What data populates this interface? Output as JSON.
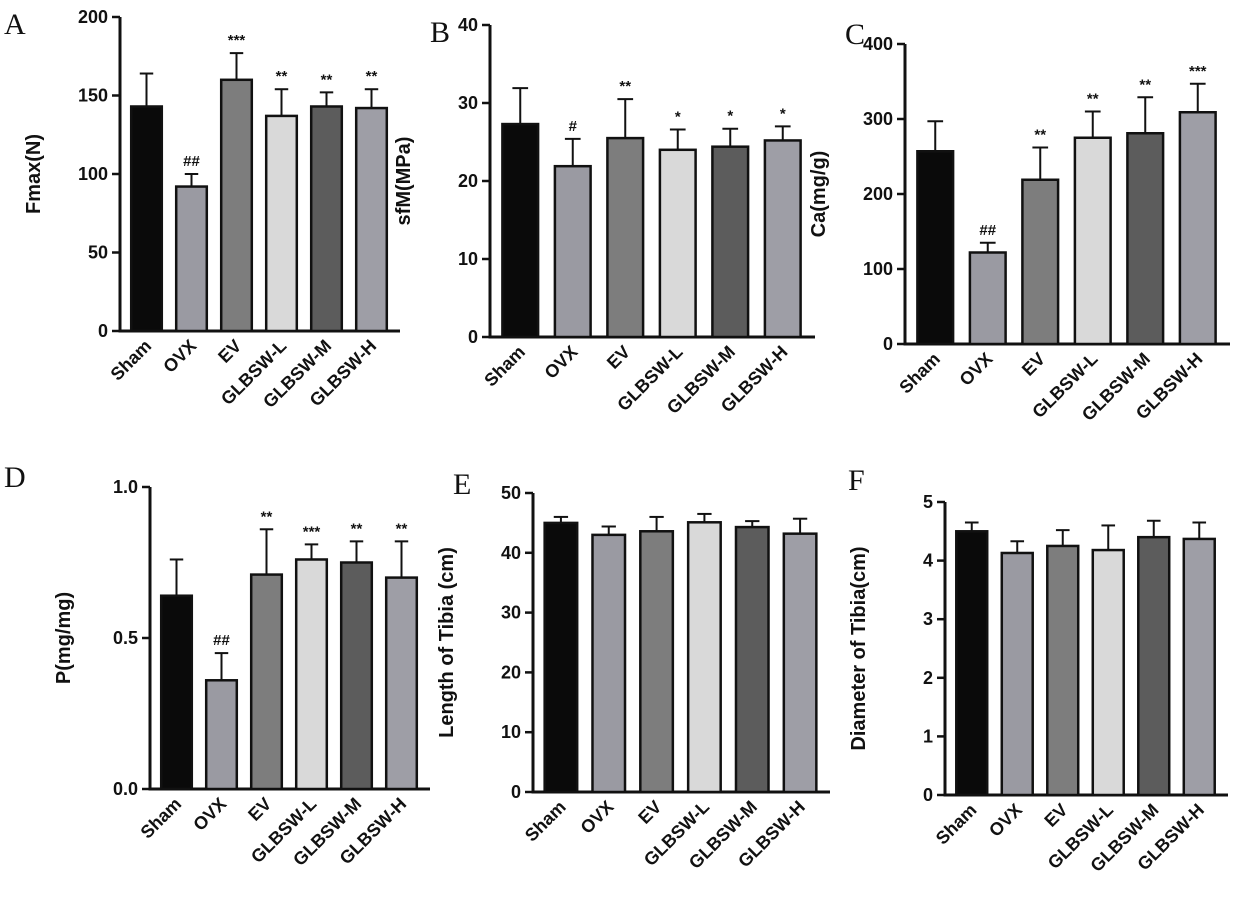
{
  "chart_data": [
    {
      "type": "bar",
      "panel": "A",
      "ylabel": "Fmax(N)",
      "categories": [
        "Sham",
        "OVX",
        "EV",
        "GLBSW-L",
        "GLBSW-M",
        "GLBSW-H"
      ],
      "values": [
        143,
        92,
        160,
        137,
        143,
        142
      ],
      "errors": [
        21,
        8,
        17,
        17,
        9,
        12
      ],
      "annotations": [
        null,
        "##",
        "***",
        "**",
        "**",
        "**"
      ],
      "colors": [
        "#0a0a0a",
        "#9a9aa2",
        "#7d7d7d",
        "#d9d9d9",
        "#5c5c5c",
        "#9e9ea6"
      ],
      "ylim": [
        0,
        200
      ],
      "yticks": [
        0,
        50,
        100,
        150,
        200
      ]
    },
    {
      "type": "bar",
      "panel": "B",
      "ylabel": "sfM(MPa)",
      "categories": [
        "Sham",
        "OVX",
        "EV",
        "GLBSW-L",
        "GLBSW-M",
        "GLBSW-H"
      ],
      "values": [
        27.3,
        21.9,
        25.5,
        24,
        24.4,
        25.2
      ],
      "errors": [
        4.6,
        3.5,
        5,
        2.6,
        2.3,
        1.8
      ],
      "annotations": [
        null,
        "#",
        "**",
        "*",
        "*",
        "*"
      ],
      "colors": [
        "#0a0a0a",
        "#9a9aa2",
        "#7d7d7d",
        "#d9d9d9",
        "#5c5c5c",
        "#9e9ea6"
      ],
      "ylim": [
        0,
        40
      ],
      "yticks": [
        0,
        10,
        20,
        30,
        40
      ]
    },
    {
      "type": "bar",
      "panel": "C",
      "ylabel": "Ca(mg/g)",
      "categories": [
        "Sham",
        "OVX",
        "EV",
        "GLBSW-L",
        "GLBSW-M",
        "GLBSW-H"
      ],
      "values": [
        257,
        122,
        219,
        275,
        281,
        309
      ],
      "errors": [
        40,
        13,
        43,
        35,
        48,
        38
      ],
      "annotations": [
        null,
        "##",
        "**",
        "**",
        "**",
        "***"
      ],
      "colors": [
        "#0a0a0a",
        "#9a9aa2",
        "#7d7d7d",
        "#d9d9d9",
        "#5c5c5c",
        "#9e9ea6"
      ],
      "ylim": [
        0,
        400
      ],
      "yticks": [
        0,
        100,
        200,
        300,
        400
      ]
    },
    {
      "type": "bar",
      "panel": "D",
      "ylabel": "P(mg/mg)",
      "categories": [
        "Sham",
        "OVX",
        "EV",
        "GLBSW-L",
        "GLBSW-M",
        "GLBSW-H"
      ],
      "values": [
        0.64,
        0.36,
        0.71,
        0.76,
        0.75,
        0.7
      ],
      "errors": [
        0.12,
        0.09,
        0.15,
        0.05,
        0.07,
        0.12
      ],
      "annotations": [
        null,
        "##",
        "**",
        "***",
        "**",
        "**"
      ],
      "colors": [
        "#0a0a0a",
        "#9a9aa2",
        "#7d7d7d",
        "#d9d9d9",
        "#5c5c5c",
        "#9e9ea6"
      ],
      "ylim": [
        0,
        1
      ],
      "yticks": [
        {
          "value": 0,
          "label": "0.0"
        },
        {
          "value": 0.5,
          "label": "0.5"
        },
        {
          "value": 1,
          "label": "1.0"
        }
      ]
    },
    {
      "type": "bar",
      "panel": "E",
      "ylabel": "Length of Tibia (cm)",
      "categories": [
        "Sham",
        "OVX",
        "EV",
        "GLBSW-L",
        "GLBSW-M",
        "GLBSW-H"
      ],
      "values": [
        45,
        43,
        43.6,
        45.1,
        44.3,
        43.2
      ],
      "errors": [
        1,
        1.4,
        2.4,
        1.4,
        1,
        2.5
      ],
      "colors": [
        "#0a0a0a",
        "#9a9aa2",
        "#7d7d7d",
        "#d9d9d9",
        "#5c5c5c",
        "#9e9ea6"
      ],
      "ylim": [
        0,
        50
      ],
      "yticks": [
        0,
        10,
        20,
        30,
        40,
        50
      ]
    },
    {
      "type": "bar",
      "panel": "F",
      "ylabel": "Diameter of Tibia(cm)",
      "categories": [
        "Sham",
        "OVX",
        "EV",
        "GLBSW-L",
        "GLBSW-M",
        "GLBSW-H"
      ],
      "values": [
        4.5,
        4.13,
        4.25,
        4.18,
        4.4,
        4.37
      ],
      "errors": [
        0.15,
        0.2,
        0.27,
        0.42,
        0.28,
        0.28
      ],
      "colors": [
        "#0a0a0a",
        "#9a9aa2",
        "#7d7d7d",
        "#d9d9d9",
        "#5c5c5c",
        "#9e9ea6"
      ],
      "ylim": [
        0,
        5
      ],
      "yticks": [
        0,
        1,
        2,
        3,
        4,
        5
      ]
    }
  ]
}
